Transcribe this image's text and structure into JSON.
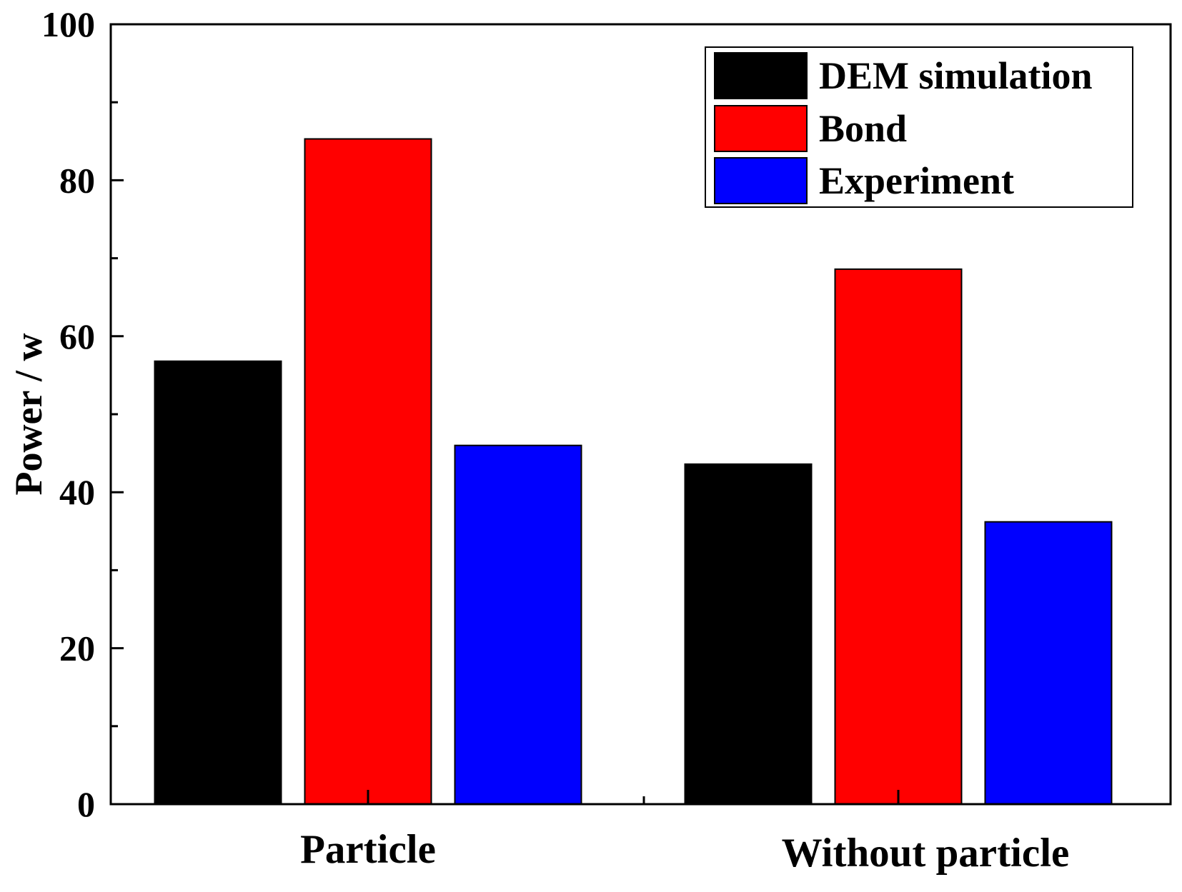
{
  "chart_data": {
    "type": "bar",
    "title": "",
    "xlabel": "",
    "ylabel": "Power / w",
    "ylim": [
      0,
      100
    ],
    "yticks": [
      0,
      20,
      40,
      60,
      80,
      100
    ],
    "yminor_step": 10,
    "grid": false,
    "legend_position": "top-right",
    "categories": [
      "Particle",
      "Without particle"
    ],
    "series": [
      {
        "name": "DEM simulation",
        "color": "#000000",
        "values": [
          56.8,
          43.6
        ]
      },
      {
        "name": "Bond",
        "color": "#ff0000",
        "values": [
          85.3,
          68.6
        ]
      },
      {
        "name": "Experiment",
        "color": "#0000ff",
        "values": [
          46,
          36.2
        ]
      }
    ]
  }
}
